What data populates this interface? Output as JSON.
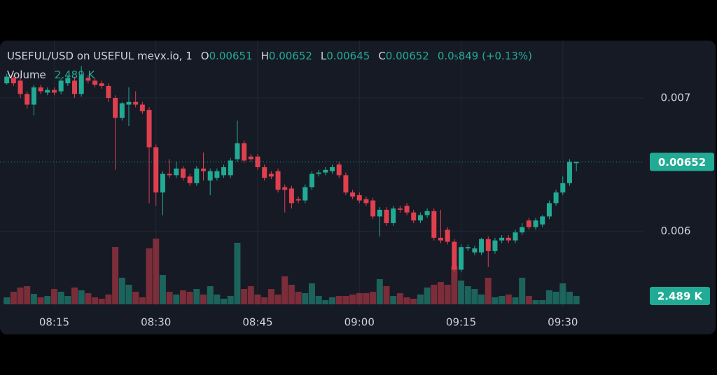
{
  "chart_data": {
    "type": "candlestick",
    "title": "USEFUL/USD on USEFUL mevx.io, 1",
    "legend_keys": [
      "O",
      "H",
      "L",
      "C"
    ],
    "change": "0.0₅849 (+0.13%)",
    "volume_name": "Volume",
    "volume_label": "2.489 K",
    "up_color": "#22ab94",
    "down_color": "#e0404e",
    "grid": true,
    "x": [
      "08:08",
      "08:09",
      "08:10",
      "08:11",
      "08:12",
      "08:13",
      "08:14",
      "08:15",
      "08:16",
      "08:17",
      "08:18",
      "08:19",
      "08:20",
      "08:21",
      "08:22",
      "08:23",
      "08:24",
      "08:25",
      "08:26",
      "08:27",
      "08:28",
      "08:29",
      "08:30",
      "08:31",
      "08:32",
      "08:33",
      "08:34",
      "08:35",
      "08:36",
      "08:37",
      "08:38",
      "08:39",
      "08:40",
      "08:41",
      "08:42",
      "08:43",
      "08:44",
      "08:45",
      "08:46",
      "08:47",
      "08:48",
      "08:49",
      "08:50",
      "08:51",
      "08:52",
      "08:53",
      "08:54",
      "08:55",
      "08:56",
      "08:57",
      "08:58",
      "08:59",
      "09:00",
      "09:01",
      "09:02",
      "09:03",
      "09:04",
      "09:05",
      "09:06",
      "09:07",
      "09:08",
      "09:09",
      "09:10",
      "09:11",
      "09:12",
      "09:13",
      "09:14",
      "09:15",
      "09:16",
      "09:17",
      "09:18",
      "09:19",
      "09:20",
      "09:21",
      "09:22",
      "09:23",
      "09:24",
      "09:25",
      "09:26",
      "09:27",
      "09:28",
      "09:29",
      "09:30",
      "09:31",
      "09:32"
    ],
    "open": [
      0.00711,
      0.00715,
      0.00713,
      0.00703,
      0.00695,
      0.00708,
      0.00704,
      0.00706,
      0.00705,
      0.00711,
      0.00713,
      0.00703,
      0.00715,
      0.00713,
      0.00711,
      0.00709,
      0.007,
      0.00685,
      0.00695,
      0.00697,
      0.00695,
      0.00691,
      0.00663,
      0.00629,
      0.00643,
      0.00642,
      0.00647,
      0.00641,
      0.00636,
      0.00647,
      0.00638,
      0.0064,
      0.00642,
      0.00642,
      0.00654,
      0.00666,
      0.00656,
      0.00656,
      0.00648,
      0.00643,
      0.00645,
      0.00633,
      0.00632,
      0.00624,
      0.00623,
      0.00633,
      0.00643,
      0.00644,
      0.00645,
      0.0065,
      0.00642,
      0.00629,
      0.00627,
      0.00624,
      0.00623,
      0.00611,
      0.00616,
      0.00606,
      0.00617,
      0.00619,
      0.00614,
      0.00608,
      0.00612,
      0.00615,
      0.00595,
      0.00601,
      0.00592,
      0.00571,
      0.00587,
      0.00584,
      0.00584,
      0.00594,
      0.00585,
      0.00593,
      0.00595,
      0.00593,
      0.00599,
      0.00608,
      0.00603,
      0.00605,
      0.00611,
      0.00621,
      0.00629,
      0.00636,
      0.00651
    ],
    "high": [
      0.00718,
      0.00717,
      0.00716,
      0.00705,
      0.0071,
      0.0071,
      0.00708,
      0.00708,
      0.00715,
      0.00717,
      0.00716,
      0.00724,
      0.00717,
      0.00715,
      0.00713,
      0.00711,
      0.00702,
      0.00697,
      0.00708,
      0.00705,
      0.00697,
      0.00693,
      0.00665,
      0.00645,
      0.00654,
      0.00652,
      0.00649,
      0.00643,
      0.00649,
      0.00659,
      0.00647,
      0.00647,
      0.0065,
      0.00655,
      0.00683,
      0.00668,
      0.00658,
      0.00658,
      0.0065,
      0.00645,
      0.00647,
      0.00635,
      0.00634,
      0.00626,
      0.00635,
      0.00645,
      0.00646,
      0.00648,
      0.0065,
      0.00652,
      0.00644,
      0.00631,
      0.00629,
      0.00626,
      0.00625,
      0.00618,
      0.00618,
      0.00619,
      0.00619,
      0.00621,
      0.00616,
      0.00614,
      0.00617,
      0.00617,
      0.00616,
      0.00603,
      0.00594,
      0.0059,
      0.0059,
      0.00589,
      0.00595,
      0.00596,
      0.00595,
      0.00597,
      0.00597,
      0.00601,
      0.00606,
      0.0061,
      0.0061,
      0.00612,
      0.00623,
      0.00631,
      0.00641,
      0.00654,
      0.00652
    ],
    "low": [
      0.0071,
      0.00709,
      0.007,
      0.00692,
      0.00687,
      0.00703,
      0.00702,
      0.00702,
      0.00703,
      0.00709,
      0.007,
      0.00701,
      0.00711,
      0.00708,
      0.00707,
      0.00697,
      0.00646,
      0.00683,
      0.00679,
      0.00693,
      0.00688,
      0.00621,
      0.00619,
      0.00612,
      0.0064,
      0.0064,
      0.00638,
      0.00634,
      0.00634,
      0.00638,
      0.00627,
      0.00638,
      0.0064,
      0.0064,
      0.00652,
      0.00651,
      0.00652,
      0.00646,
      0.00638,
      0.00639,
      0.00629,
      0.00614,
      0.00617,
      0.00621,
      0.00621,
      0.00631,
      0.00641,
      0.00642,
      0.00643,
      0.0064,
      0.00627,
      0.00624,
      0.00621,
      0.00619,
      0.00609,
      0.00596,
      0.00604,
      0.00604,
      0.00614,
      0.00612,
      0.00606,
      0.00606,
      0.0061,
      0.00593,
      0.00591,
      0.0059,
      0.00569,
      0.00569,
      0.00585,
      0.00582,
      0.00582,
      0.00573,
      0.00583,
      0.00591,
      0.00591,
      0.00591,
      0.00597,
      0.00601,
      0.00601,
      0.00603,
      0.00609,
      0.00619,
      0.00627,
      0.00634,
      0.00645
    ],
    "close": [
      0.00716,
      0.00711,
      0.00703,
      0.00695,
      0.00708,
      0.00705,
      0.00706,
      0.00704,
      0.00713,
      0.00715,
      0.00703,
      0.00717,
      0.00713,
      0.0071,
      0.00709,
      0.007,
      0.00685,
      0.00696,
      0.00697,
      0.00695,
      0.0069,
      0.00663,
      0.00629,
      0.00643,
      0.00642,
      0.00647,
      0.0064,
      0.00636,
      0.00647,
      0.00645,
      0.00645,
      0.00645,
      0.00648,
      0.00653,
      0.00666,
      0.00653,
      0.00654,
      0.00648,
      0.0064,
      0.00641,
      0.00631,
      0.00631,
      0.00621,
      0.00623,
      0.00633,
      0.00643,
      0.00644,
      0.00646,
      0.00648,
      0.00642,
      0.00629,
      0.00626,
      0.00623,
      0.00621,
      0.00611,
      0.00616,
      0.00606,
      0.00617,
      0.00616,
      0.00614,
      0.00608,
      0.00612,
      0.00615,
      0.00595,
      0.00593,
      0.00592,
      0.00571,
      0.00588,
      0.00588,
      0.00587,
      0.00594,
      0.00585,
      0.00593,
      0.00595,
      0.00593,
      0.00599,
      0.00603,
      0.00603,
      0.00608,
      0.00611,
      0.00621,
      0.00629,
      0.00636,
      0.00652,
      0.00652
    ],
    "volume": [
      2070,
      3730,
      4970,
      5380,
      3110,
      2070,
      2480,
      4550,
      3730,
      2480,
      4970,
      4140,
      3310,
      2070,
      1660,
      2900,
      16970,
      7870,
      5800,
      3730,
      2070,
      16560,
      19460,
      8690,
      3730,
      2900,
      4140,
      3730,
      4550,
      2900,
      5380,
      2900,
      1660,
      2480,
      18220,
      4550,
      5380,
      2900,
      2070,
      4550,
      2900,
      8280,
      5800,
      3730,
      3310,
      6210,
      2480,
      1240,
      2070,
      2480,
      2480,
      2900,
      3310,
      3310,
      3730,
      7450,
      5380,
      2480,
      3310,
      2070,
      1660,
      2900,
      4970,
      5800,
      6620,
      5800,
      11390,
      7040,
      5380,
      4550,
      2900,
      7870,
      2070,
      2480,
      2900,
      2070,
      7870,
      2480,
      1240,
      1240,
      4140,
      3730,
      6210,
      3730,
      2489
    ],
    "xlim": [
      "08:07",
      "09:42"
    ],
    "xticks": [
      "08:15",
      "08:30",
      "08:45",
      "09:00",
      "09:15",
      "09:30"
    ],
    "ylim": [
      0.00545,
      0.00741
    ],
    "yticks": [
      0.006,
      0.007
    ]
  }
}
